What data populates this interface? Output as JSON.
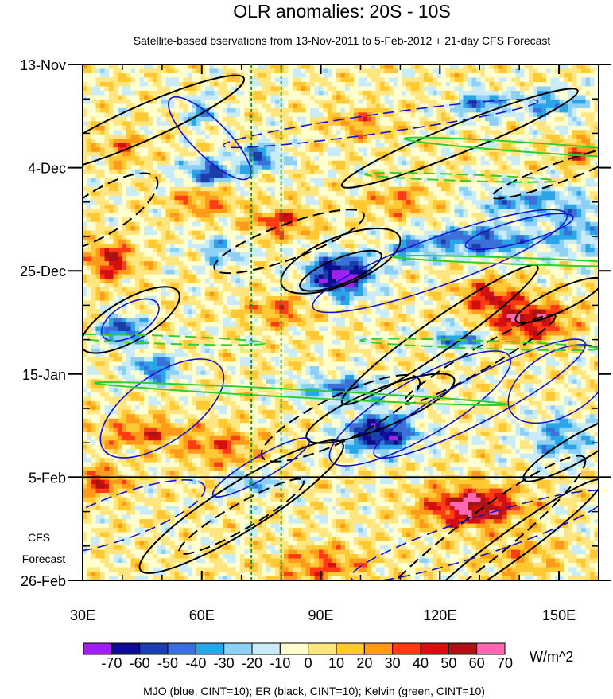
{
  "chart_data": {
    "type": "heatmap",
    "title": "OLR anomalies: 20S - 10S",
    "subtitle": "Satellite-based bservations from 13-Nov-2011 to 5-Feb-2012 + 21-day CFS Forecast",
    "x_ticks": [
      "30E",
      "60E",
      "90E",
      "120E",
      "150E"
    ],
    "x_tick_values": [
      30,
      60,
      90,
      120,
      150
    ],
    "xlim": [
      30,
      160
    ],
    "y_ticks": [
      "13-Nov",
      "4-Dec",
      "25-Dec",
      "15-Jan",
      "5-Feb",
      "26-Feb"
    ],
    "y_tick_days": [
      0,
      21,
      42,
      63,
      84,
      105
    ],
    "ylim_days": [
      0,
      105
    ],
    "observation_end_day": 84,
    "forecast_label": [
      "CFS",
      "Forecast"
    ],
    "reference_longitudes": [
      72.5,
      80
    ],
    "colorbar": {
      "labels": [
        "-70",
        "-60",
        "-50",
        "-40",
        "-30",
        "-20",
        "-10",
        "0",
        "10",
        "20",
        "30",
        "40",
        "50",
        "60",
        "70"
      ],
      "levels": [
        -70,
        -60,
        -50,
        -40,
        -30,
        -20,
        -10,
        0,
        10,
        20,
        30,
        40,
        50,
        60,
        70
      ],
      "colors": [
        "#a020f0",
        "#0d0d8c",
        "#1a3fa8",
        "#3a70d8",
        "#2aa6e8",
        "#8fd0f5",
        "#c9ecf8",
        "#ffffd0",
        "#ffe680",
        "#ffc933",
        "#ff9a1a",
        "#ff3c14",
        "#d40f0f",
        "#a81414",
        "#ff69b4"
      ],
      "units": "W/m^2"
    },
    "contour_legend": "MJO (blue, CINT=10); ER (black, CINT=10); Kelvin (green, CINT=10)",
    "contour_colors": {
      "mjo": "#1414cc",
      "er": "#000000",
      "kelvin": "#33cc33"
    }
  }
}
